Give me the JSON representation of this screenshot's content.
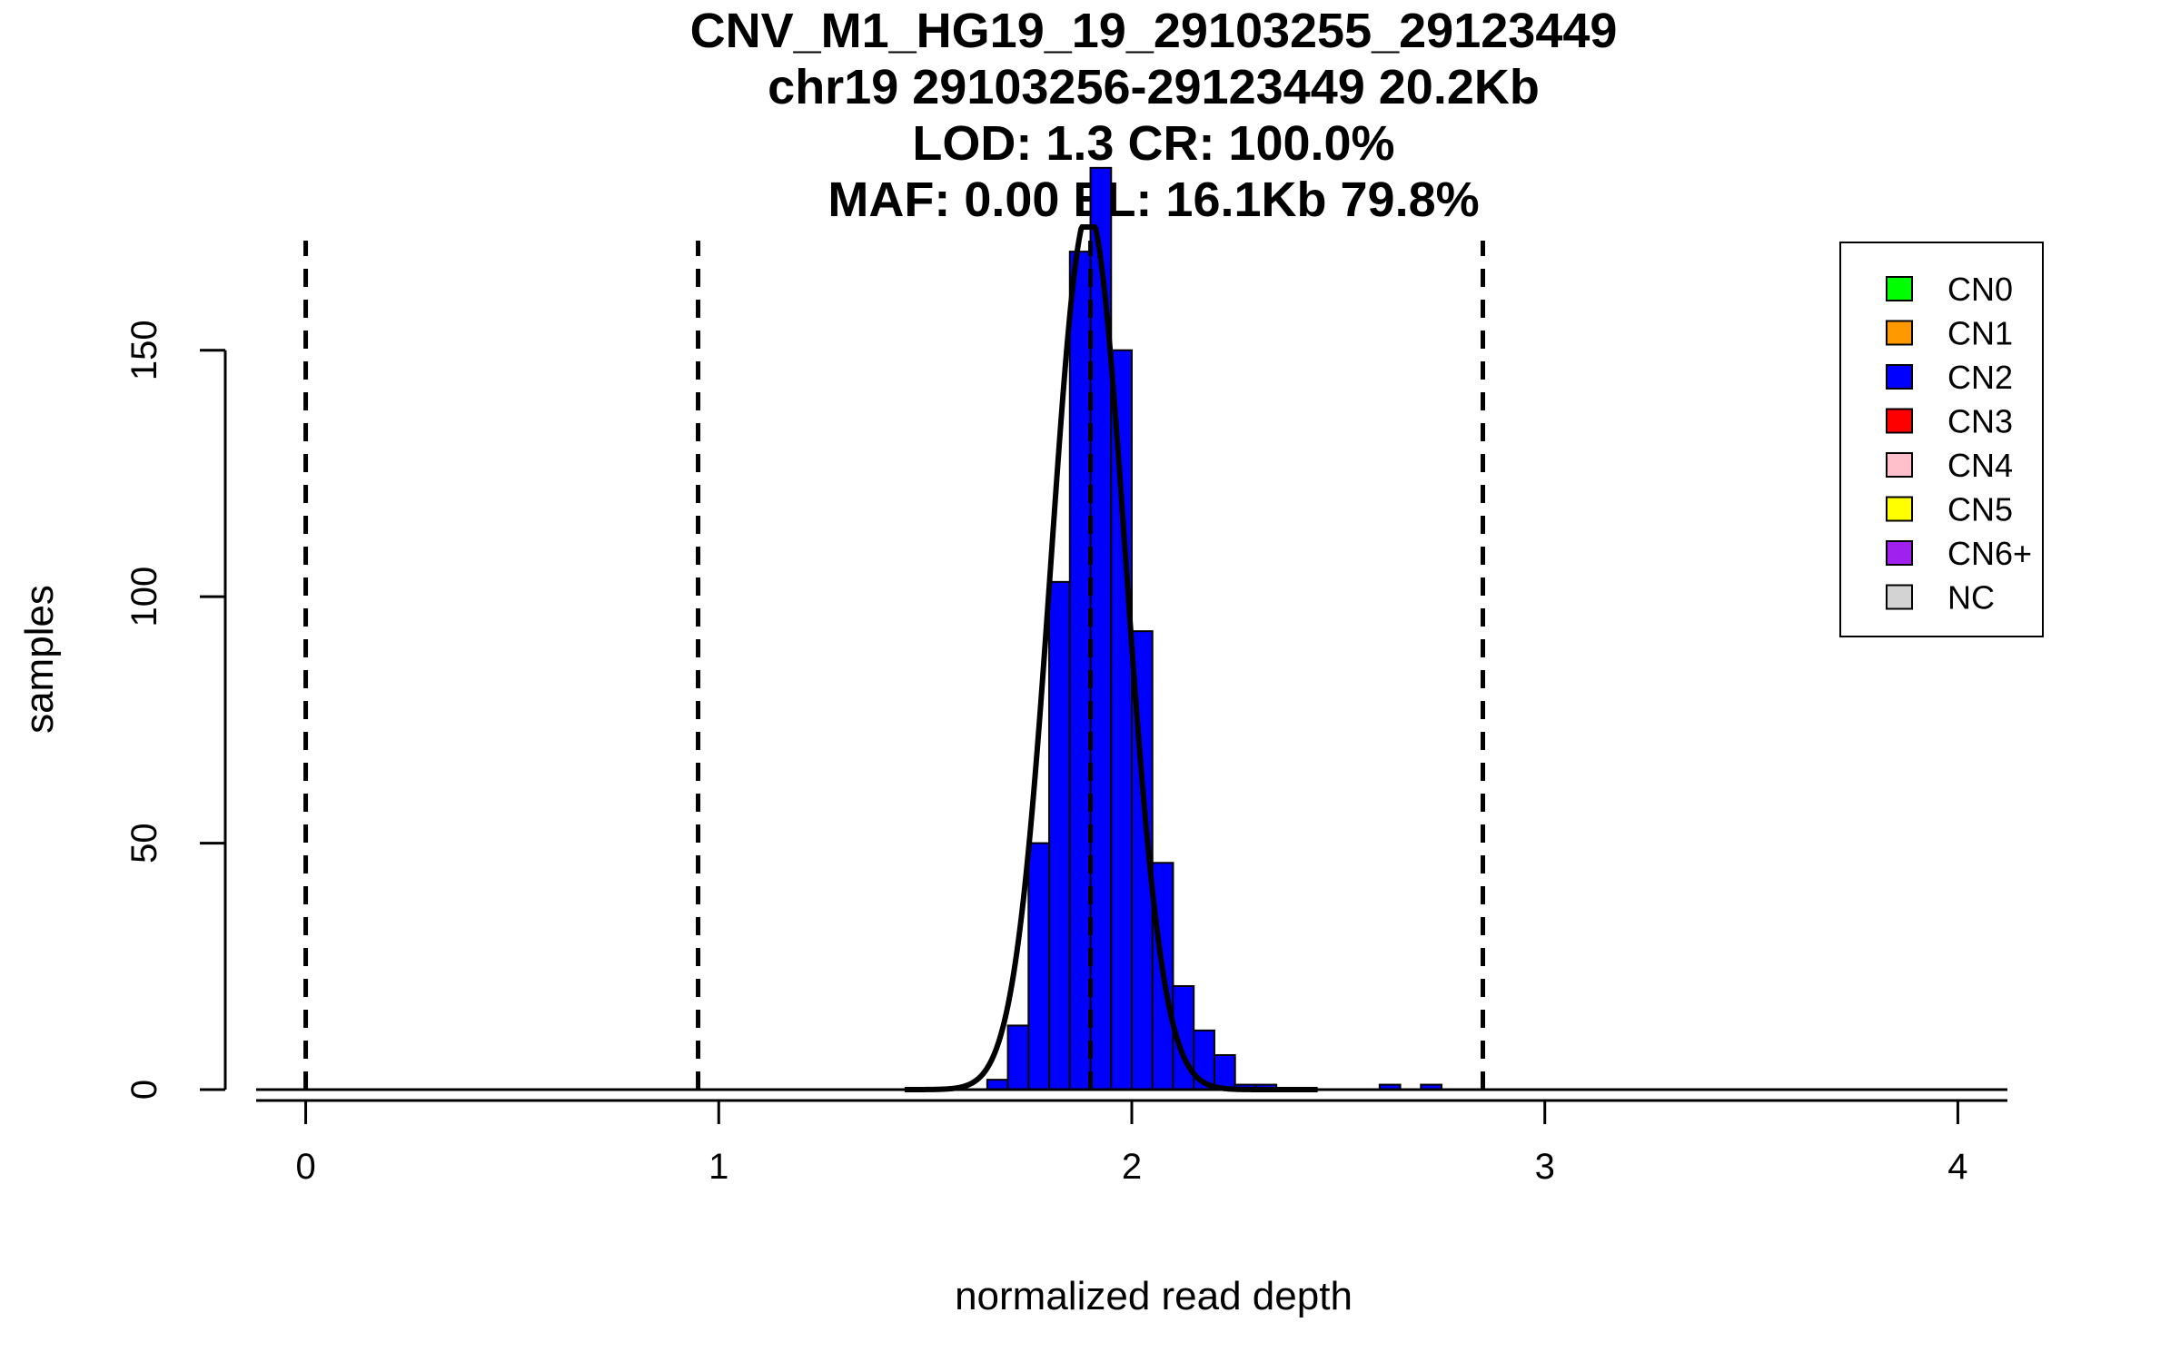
{
  "chart_data": {
    "type": "bar",
    "title_lines": [
      "CNV_M1_HG19_19_29103255_29123449",
      "chr19 29103256-29123449 20.2Kb",
      "LOD: 1.3 CR: 100.0%",
      "MAF: 0.00 EL: 16.1Kb 79.8%"
    ],
    "xlabel": "normalized read depth",
    "ylabel": "samples",
    "xlim": [
      -0.12,
      4.12
    ],
    "ylim": [
      0,
      175
    ],
    "x_ticks": [
      "0",
      "1",
      "2",
      "3",
      "4"
    ],
    "y_ticks": [
      "0",
      "50",
      "100",
      "150"
    ],
    "bin_width": 0.05,
    "histogram": {
      "bin_starts": [
        1.6,
        1.65,
        1.7,
        1.75,
        1.8,
        1.85,
        1.9,
        1.95,
        2.0,
        2.05,
        2.1,
        2.15,
        2.2,
        2.25,
        2.3,
        2.35,
        2.4,
        2.45,
        2.5,
        2.55,
        2.6,
        2.65,
        2.7
      ],
      "counts": [
        0,
        2,
        13,
        50,
        103,
        170,
        187,
        150,
        93,
        46,
        21,
        12,
        7,
        1,
        1,
        0,
        0,
        0,
        0,
        0,
        1,
        0,
        1
      ],
      "color": "#0000ff"
    },
    "fitted_curve": {
      "mean": 1.895,
      "sd": 0.09,
      "peak": 178,
      "color": "#000000"
    },
    "cn_thresholds": [
      0.0,
      0.95,
      1.9,
      2.85
    ],
    "legend": {
      "position": "top-right",
      "items": [
        {
          "label": "CN0",
          "color": "#00ff00"
        },
        {
          "label": "CN1",
          "color": "#ff9900"
        },
        {
          "label": "CN2",
          "color": "#0000ff"
        },
        {
          "label": "CN3",
          "color": "#ff0000"
        },
        {
          "label": "CN4",
          "color": "#ffc0cb"
        },
        {
          "label": "CN5",
          "color": "#ffff00"
        },
        {
          "label": "CN6+",
          "color": "#a020f0"
        },
        {
          "label": "NC",
          "color": "#d3d3d3"
        }
      ]
    }
  }
}
